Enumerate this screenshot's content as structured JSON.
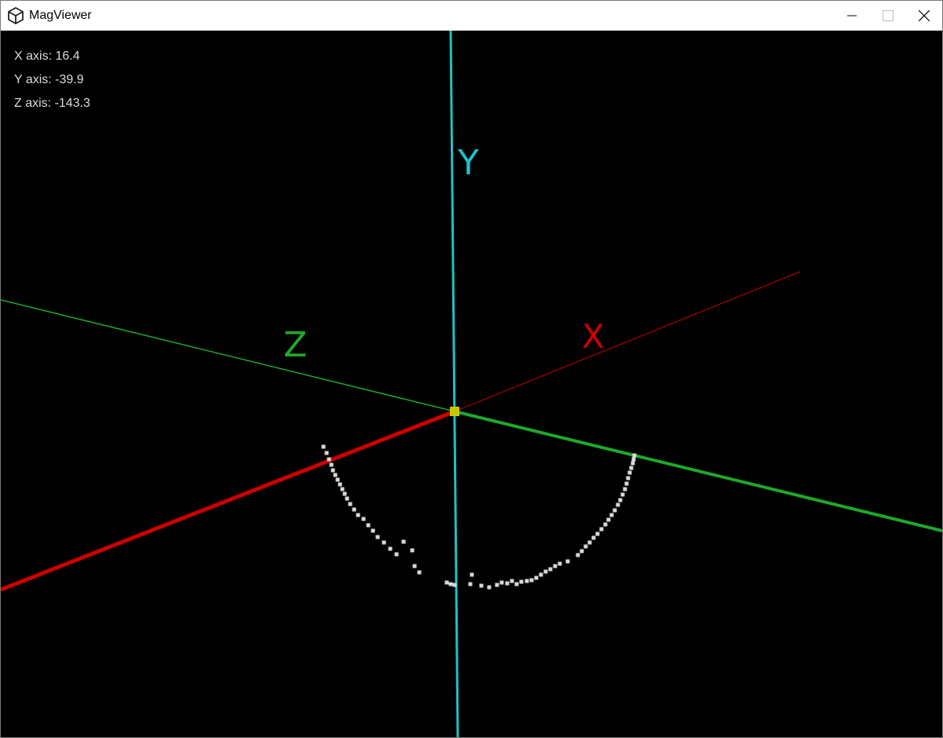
{
  "window": {
    "title": "MagViewer",
    "app_icon": "unity-icon",
    "controls": [
      {
        "name": "minimize-button",
        "icon": "minimize-icon"
      },
      {
        "name": "maximize-button",
        "icon": "maximize-icon"
      },
      {
        "name": "close-button",
        "icon": "close-icon"
      }
    ]
  },
  "readout": {
    "x_label": "X axis: 16.4",
    "y_label": "Y axis: -39.9",
    "z_label": "Z axis: -143.3"
  },
  "axes": {
    "x": {
      "label": "X",
      "color": "#cc0000"
    },
    "y": {
      "label": "Y",
      "color": "#1ec2c8"
    },
    "z": {
      "label": "Z",
      "color": "#1fa82a"
    },
    "origin_color": "#c8c800"
  },
  "points_color": "#d8d8d8"
}
